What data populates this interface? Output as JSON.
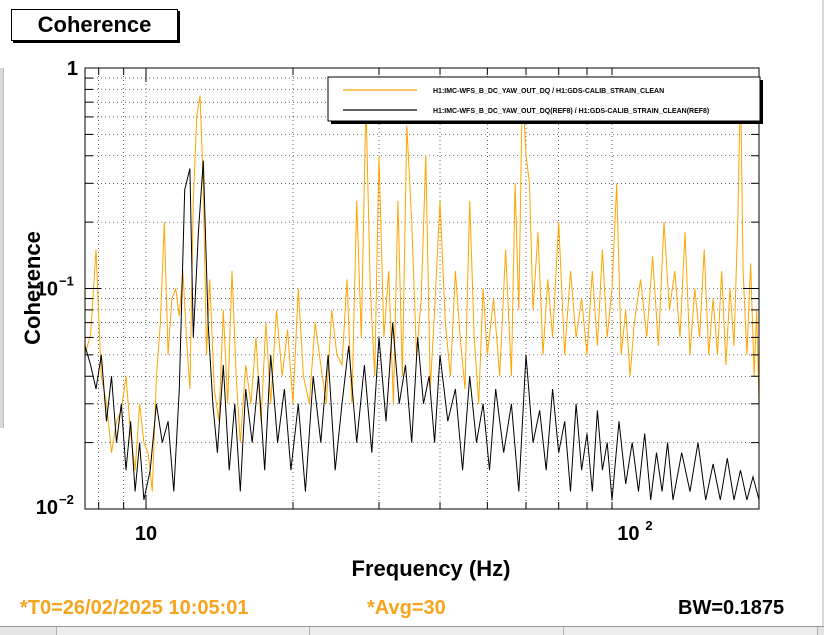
{
  "window": {
    "title": "Coherence"
  },
  "footer": {
    "t0": "*T0=26/02/2025 10:05:01",
    "avg": "*Avg=30",
    "bw": "BW=0.1875",
    "t0_color": "#f7a41d",
    "avg_color": "#f7a41d",
    "bw_color": "#000000"
  },
  "colors": {
    "series_current": "#ffa500",
    "series_reference": "#000000",
    "grid": "#000000",
    "background": "#ffffff"
  },
  "chart_data": {
    "type": "line",
    "title": "Coherence",
    "xlabel": "Frequency (Hz)",
    "ylabel": "Coherence",
    "xscale": "log",
    "yscale": "log",
    "xlim": [
      7.5,
      180
    ],
    "ylim": [
      0.01,
      1
    ],
    "grid": true,
    "legend_position": "top-right",
    "x_ticks": [
      {
        "base": "10",
        "exp": "",
        "value": 10
      },
      {
        "base": "10",
        "exp": "2",
        "value": 100
      }
    ],
    "y_ticks": [
      {
        "base": "1",
        "exp": "",
        "value": 1
      },
      {
        "base": "10",
        "exp": "−1",
        "value": 0.1
      },
      {
        "base": "10",
        "exp": "−2",
        "value": 0.01
      }
    ],
    "series": [
      {
        "name": "H1:IMC-WFS_B_DC_YAW_OUT_DQ / H1:GDS-CALIB_STRAIN_CLEAN",
        "color": "#ffa500",
        "points": [
          [
            7.5,
            0.05
          ],
          [
            7.7,
            0.062
          ],
          [
            7.9,
            0.15
          ],
          [
            8.1,
            0.04
          ],
          [
            8.3,
            0.03
          ],
          [
            8.5,
            0.018
          ],
          [
            8.7,
            0.025
          ],
          [
            8.9,
            0.028
          ],
          [
            9.1,
            0.04
          ],
          [
            9.3,
            0.022
          ],
          [
            9.5,
            0.015
          ],
          [
            9.7,
            0.03
          ],
          [
            9.9,
            0.02
          ],
          [
            10.1,
            0.018
          ],
          [
            10.3,
            0.012
          ],
          [
            10.5,
            0.04
          ],
          [
            10.7,
            0.07
          ],
          [
            10.9,
            0.2
          ],
          [
            11.1,
            0.05
          ],
          [
            11.3,
            0.09
          ],
          [
            11.5,
            0.1
          ],
          [
            11.7,
            0.075
          ],
          [
            11.9,
            0.12
          ],
          [
            12.1,
            0.06
          ],
          [
            12.3,
            0.035
          ],
          [
            12.5,
            0.25
          ],
          [
            12.7,
            0.6
          ],
          [
            12.9,
            0.75
          ],
          [
            13.1,
            0.3
          ],
          [
            13.3,
            0.05
          ],
          [
            13.5,
            0.11
          ],
          [
            13.8,
            0.035
          ],
          [
            14.1,
            0.025
          ],
          [
            14.4,
            0.08
          ],
          [
            14.7,
            0.03
          ],
          [
            15.0,
            0.12
          ],
          [
            15.3,
            0.04
          ],
          [
            15.6,
            0.02
          ],
          [
            16.0,
            0.045
          ],
          [
            16.4,
            0.03
          ],
          [
            16.8,
            0.06
          ],
          [
            17.2,
            0.025
          ],
          [
            17.6,
            0.07
          ],
          [
            18.0,
            0.03
          ],
          [
            18.5,
            0.08
          ],
          [
            19.0,
            0.04
          ],
          [
            19.5,
            0.065
          ],
          [
            20.0,
            0.03
          ],
          [
            20.5,
            0.1
          ],
          [
            21.0,
            0.04
          ],
          [
            21.6,
            0.03
          ],
          [
            22.2,
            0.07
          ],
          [
            22.8,
            0.045
          ],
          [
            23.4,
            0.03
          ],
          [
            24.0,
            0.08
          ],
          [
            24.6,
            0.05
          ],
          [
            25.2,
            0.045
          ],
          [
            25.8,
            0.11
          ],
          [
            26.4,
            0.03
          ],
          [
            27.0,
            0.25
          ],
          [
            27.6,
            0.06
          ],
          [
            28.2,
            0.7
          ],
          [
            28.8,
            0.1
          ],
          [
            29.4,
            0.04
          ],
          [
            30.0,
            0.4
          ],
          [
            30.7,
            0.06
          ],
          [
            31.4,
            0.12
          ],
          [
            32.1,
            0.03
          ],
          [
            32.8,
            0.25
          ],
          [
            33.5,
            0.04
          ],
          [
            34.2,
            0.55
          ],
          [
            35.0,
            0.2
          ],
          [
            35.8,
            0.05
          ],
          [
            36.6,
            0.09
          ],
          [
            37.4,
            0.4
          ],
          [
            38.2,
            0.035
          ],
          [
            39.0,
            0.08
          ],
          [
            40.0,
            0.25
          ],
          [
            41.0,
            0.07
          ],
          [
            42.0,
            0.04
          ],
          [
            43.0,
            0.12
          ],
          [
            44.0,
            0.06
          ],
          [
            45.0,
            0.035
          ],
          [
            46.0,
            0.25
          ],
          [
            47.0,
            0.06
          ],
          [
            48.0,
            0.03
          ],
          [
            49.0,
            0.1
          ],
          [
            50.0,
            0.05
          ],
          [
            51.5,
            0.09
          ],
          [
            53.0,
            0.04
          ],
          [
            54.5,
            0.15
          ],
          [
            56.0,
            0.04
          ],
          [
            57.0,
            0.3
          ],
          [
            58.0,
            0.08
          ],
          [
            59.0,
            0.85
          ],
          [
            60.0,
            0.4
          ],
          [
            61.0,
            0.3
          ],
          [
            62.0,
            0.08
          ],
          [
            63.5,
            0.18
          ],
          [
            65.0,
            0.05
          ],
          [
            66.5,
            0.11
          ],
          [
            68.0,
            0.06
          ],
          [
            70.0,
            0.2
          ],
          [
            72.0,
            0.05
          ],
          [
            74.0,
            0.12
          ],
          [
            76.0,
            0.06
          ],
          [
            78.0,
            0.09
          ],
          [
            80.0,
            0.05
          ],
          [
            82.0,
            0.12
          ],
          [
            84.0,
            0.055
          ],
          [
            86.0,
            0.15
          ],
          [
            88.0,
            0.06
          ],
          [
            90.0,
            0.1
          ],
          [
            92.0,
            0.3
          ],
          [
            94.0,
            0.05
          ],
          [
            96.0,
            0.08
          ],
          [
            98.0,
            0.04
          ],
          [
            100.0,
            0.07
          ],
          [
            103.0,
            0.11
          ],
          [
            106.0,
            0.06
          ],
          [
            109.0,
            0.14
          ],
          [
            112.0,
            0.055
          ],
          [
            115.0,
            0.2
          ],
          [
            118.0,
            0.08
          ],
          [
            121.0,
            0.12
          ],
          [
            124.0,
            0.06
          ],
          [
            127.0,
            0.18
          ],
          [
            130.0,
            0.05
          ],
          [
            133.0,
            0.1
          ],
          [
            136.0,
            0.06
          ],
          [
            139.0,
            0.15
          ],
          [
            142.0,
            0.05
          ],
          [
            145.0,
            0.09
          ],
          [
            148.0,
            0.05
          ],
          [
            151.0,
            0.12
          ],
          [
            154.0,
            0.045
          ],
          [
            157.0,
            0.1
          ],
          [
            160.0,
            0.055
          ],
          [
            163.0,
            0.22
          ],
          [
            165.0,
            0.9
          ],
          [
            167.0,
            0.12
          ],
          [
            170.0,
            0.05
          ],
          [
            173.0,
            0.13
          ],
          [
            176.0,
            0.04
          ],
          [
            178.0,
            0.08
          ],
          [
            180.0,
            0.03
          ]
        ]
      },
      {
        "name": "H1:IMC-WFS_B_DC_YAW_OUT_DQ(REF8) / H1:GDS-CALIB_STRAIN_CLEAN(REF8)",
        "color": "#000000",
        "points": [
          [
            7.5,
            0.055
          ],
          [
            7.7,
            0.045
          ],
          [
            7.9,
            0.035
          ],
          [
            8.1,
            0.05
          ],
          [
            8.3,
            0.025
          ],
          [
            8.5,
            0.04
          ],
          [
            8.7,
            0.02
          ],
          [
            8.9,
            0.03
          ],
          [
            9.1,
            0.015
          ],
          [
            9.3,
            0.025
          ],
          [
            9.5,
            0.012
          ],
          [
            9.7,
            0.02
          ],
          [
            9.9,
            0.011
          ],
          [
            10.2,
            0.015
          ],
          [
            10.5,
            0.03
          ],
          [
            10.8,
            0.02
          ],
          [
            11.1,
            0.025
          ],
          [
            11.4,
            0.012
          ],
          [
            11.7,
            0.035
          ],
          [
            12.0,
            0.28
          ],
          [
            12.3,
            0.35
          ],
          [
            12.5,
            0.06
          ],
          [
            12.8,
            0.18
          ],
          [
            13.1,
            0.38
          ],
          [
            13.4,
            0.07
          ],
          [
            13.7,
            0.03
          ],
          [
            14.0,
            0.018
          ],
          [
            14.4,
            0.045
          ],
          [
            14.8,
            0.015
          ],
          [
            15.2,
            0.03
          ],
          [
            15.6,
            0.012
          ],
          [
            16.0,
            0.035
          ],
          [
            16.5,
            0.02
          ],
          [
            17.0,
            0.04
          ],
          [
            17.5,
            0.015
          ],
          [
            18.0,
            0.05
          ],
          [
            18.6,
            0.02
          ],
          [
            19.2,
            0.035
          ],
          [
            19.8,
            0.015
          ],
          [
            20.5,
            0.03
          ],
          [
            21.2,
            0.012
          ],
          [
            22.0,
            0.04
          ],
          [
            22.8,
            0.02
          ],
          [
            23.6,
            0.05
          ],
          [
            24.4,
            0.015
          ],
          [
            25.2,
            0.03
          ],
          [
            26.0,
            0.055
          ],
          [
            27.0,
            0.02
          ],
          [
            28.0,
            0.045
          ],
          [
            29.0,
            0.018
          ],
          [
            30.0,
            0.06
          ],
          [
            31.0,
            0.025
          ],
          [
            32.0,
            0.07
          ],
          [
            33.0,
            0.03
          ],
          [
            34.0,
            0.045
          ],
          [
            35.0,
            0.02
          ],
          [
            36.0,
            0.06
          ],
          [
            37.0,
            0.03
          ],
          [
            38.0,
            0.04
          ],
          [
            39.0,
            0.02
          ],
          [
            40.0,
            0.05
          ],
          [
            41.5,
            0.025
          ],
          [
            43.0,
            0.035
          ],
          [
            44.5,
            0.015
          ],
          [
            46.0,
            0.04
          ],
          [
            47.5,
            0.02
          ],
          [
            49.0,
            0.03
          ],
          [
            50.5,
            0.015
          ],
          [
            52.0,
            0.035
          ],
          [
            54.0,
            0.018
          ],
          [
            56.0,
            0.03
          ],
          [
            58.0,
            0.012
          ],
          [
            60.0,
            0.05
          ],
          [
            62.0,
            0.02
          ],
          [
            64.0,
            0.028
          ],
          [
            66.0,
            0.015
          ],
          [
            68.0,
            0.035
          ],
          [
            70.0,
            0.018
          ],
          [
            72.0,
            0.025
          ],
          [
            74.0,
            0.012
          ],
          [
            76.0,
            0.03
          ],
          [
            78.0,
            0.015
          ],
          [
            80.0,
            0.022
          ],
          [
            82.0,
            0.012
          ],
          [
            84.0,
            0.028
          ],
          [
            86.0,
            0.015
          ],
          [
            88.0,
            0.02
          ],
          [
            90.0,
            0.011
          ],
          [
            93.0,
            0.025
          ],
          [
            96.0,
            0.013
          ],
          [
            99.0,
            0.02
          ],
          [
            102.0,
            0.012
          ],
          [
            105.0,
            0.022
          ],
          [
            108.0,
            0.011
          ],
          [
            111.0,
            0.018
          ],
          [
            114.0,
            0.012
          ],
          [
            117.0,
            0.02
          ],
          [
            120.0,
            0.011
          ],
          [
            125.0,
            0.018
          ],
          [
            130.0,
            0.012
          ],
          [
            135.0,
            0.02
          ],
          [
            140.0,
            0.011
          ],
          [
            145.0,
            0.016
          ],
          [
            150.0,
            0.011
          ],
          [
            155.0,
            0.017
          ],
          [
            160.0,
            0.011
          ],
          [
            165.0,
            0.015
          ],
          [
            170.0,
            0.011
          ],
          [
            175.0,
            0.014
          ],
          [
            180.0,
            0.011
          ]
        ]
      }
    ]
  }
}
